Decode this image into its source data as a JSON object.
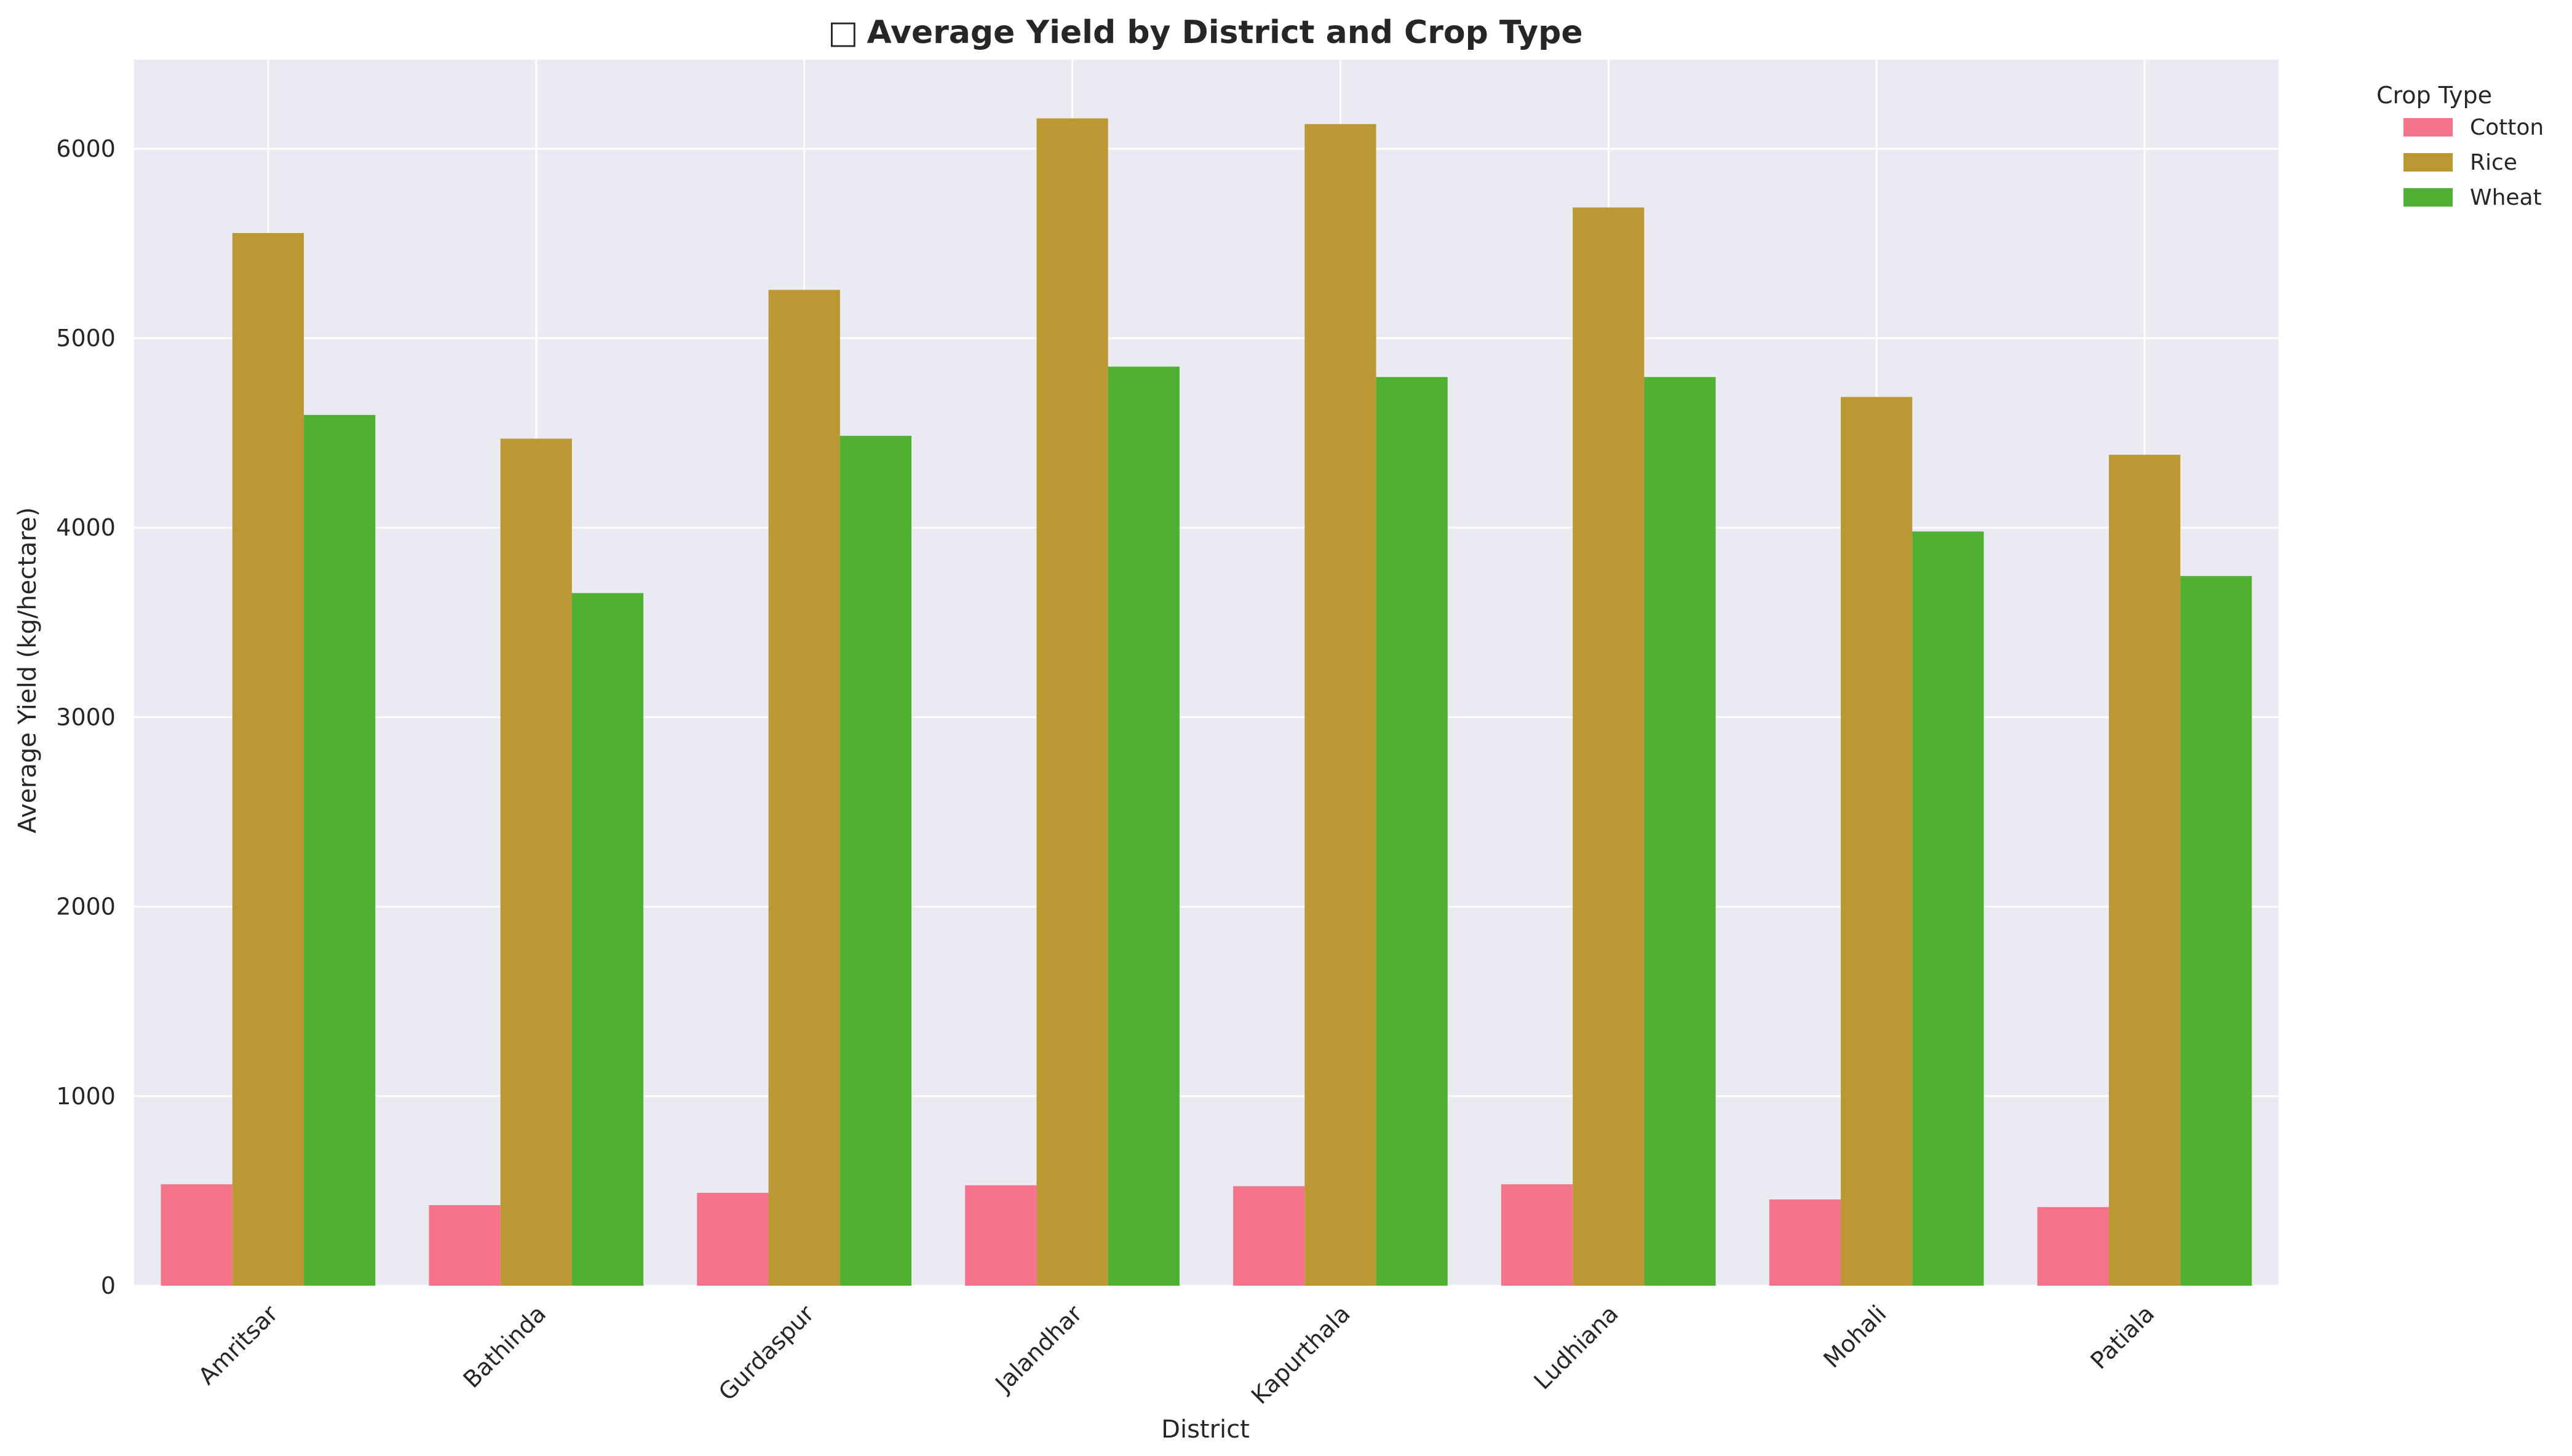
{
  "chart_data": {
    "type": "bar",
    "title": "Average Yield by District and Crop Type",
    "title_icon": "□",
    "xlabel": "District",
    "ylabel": "Average Yield (kg/hectare)",
    "categories": [
      "Amritsar",
      "Bathinda",
      "Gurdaspur",
      "Jalandhar",
      "Kapurthala",
      "Ludhiana",
      "Mohali",
      "Patiala"
    ],
    "series": [
      {
        "name": "Cotton",
        "color": "#f5738b",
        "values": [
          535,
          425,
          490,
          530,
          525,
          535,
          455,
          415
        ]
      },
      {
        "name": "Rice",
        "color": "#bb9833",
        "values": [
          5555,
          4470,
          5255,
          6160,
          6130,
          5690,
          4690,
          4385
        ]
      },
      {
        "name": "Wheat",
        "color": "#50b032",
        "values": [
          4595,
          3655,
          4485,
          4850,
          4795,
          4795,
          3980,
          3745
        ]
      }
    ],
    "ylim": [
      0,
      6470
    ],
    "yticks": [
      0,
      1000,
      2000,
      3000,
      4000,
      5000,
      6000
    ],
    "grid": true,
    "legend": {
      "title": "Crop Type",
      "placement": "outside-top-right"
    },
    "background": "#eaeaf2"
  }
}
